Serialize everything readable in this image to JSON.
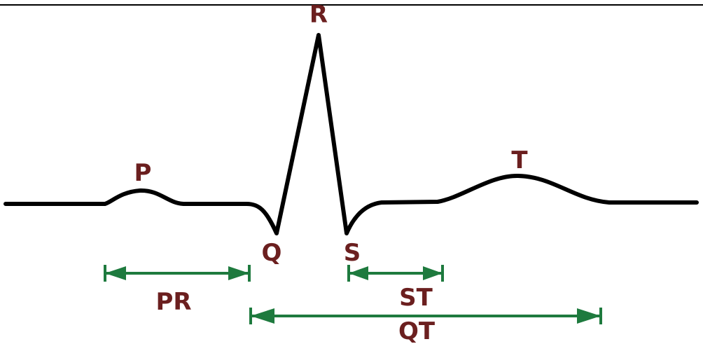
{
  "diagram": {
    "waves": {
      "p": "P",
      "q": "Q",
      "r": "R",
      "s": "S",
      "t": "T"
    },
    "intervals": {
      "pr": "PR",
      "st": "ST",
      "qt": "QT"
    },
    "colors": {
      "trace": "#000000",
      "wave_labels": "#6b1f1f",
      "interval_arrows": "#1e7a3e",
      "border": "#000000"
    }
  }
}
